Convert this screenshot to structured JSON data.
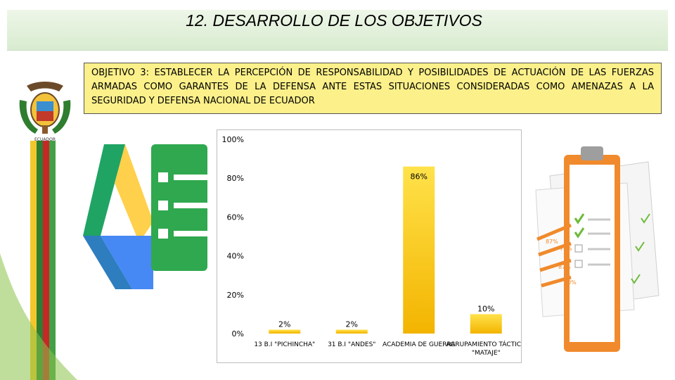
{
  "slide": {
    "title": "12. DESARROLLO DE LOS OBJETIVOS",
    "objective": "OBJETIVO 3: ESTABLECER LA PERCEPCIÓN DE RESPONSABILIDAD Y POSIBILIDADES DE ACTUACIÓN DE LAS FUERZAS ARMADAS COMO GARANTES DE LA DEFENSA ANTE ESTAS SITUACIONES CONSIDERADAS COMO AMENAZAS A LA SEGURIDAD Y DEFENSA NACIONAL DE ECUADOR",
    "emblem_caption": "ECUADOR",
    "checklist_percents": [
      "87%",
      "78%",
      "87%",
      "60%"
    ]
  },
  "colors": {
    "bar_top": "#ffe24a",
    "bar_bottom": "#f3b400",
    "title_bg": "#dcefd3",
    "objective_bg": "#fbf08a",
    "drive_green": "#1fa463",
    "drive_yellow": "#ffd04b",
    "drive_blue": "#4688f4",
    "forms_green": "#2fa84f",
    "clipboard_orange": "#f08a2c"
  },
  "chart_data": {
    "type": "bar",
    "categories": [
      "13 B.I \"PICHINCHA\"",
      "31 B.I \"ANDES\"",
      "ACADEMIA DE GUERRA",
      "AGRUPAMIENTO TÁCTICO \"MATAJE\""
    ],
    "values": [
      2,
      2,
      86,
      10
    ],
    "data_labels": [
      "2%",
      "2%",
      "86%",
      "10%"
    ],
    "ylim": [
      0,
      100
    ],
    "yticks": [
      "0%",
      "20%",
      "40%",
      "60%",
      "80%",
      "100%"
    ],
    "grid": false,
    "legend": "none"
  }
}
